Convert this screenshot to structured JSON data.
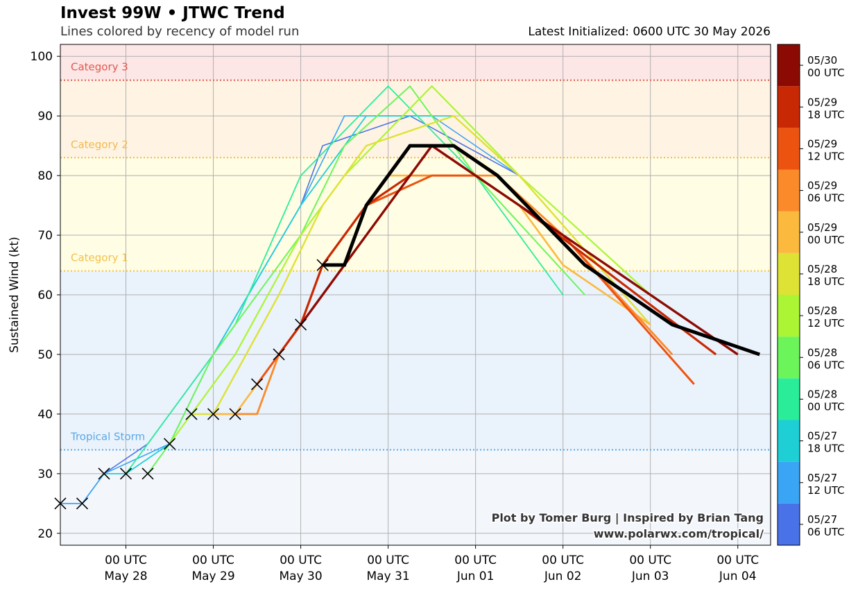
{
  "header": {
    "title": "Invest 99W • JTWC Trend",
    "subtitle": "Lines colored by recency of model run",
    "latest": "Latest Initialized: 0600 UTC 30 May 2026"
  },
  "credit": {
    "line1": "Plot by Tomer Burg | Inspired by Brian Tang",
    "line2": "www.polarwx.com/tropical/"
  },
  "chart_data": {
    "type": "line",
    "ylabel": "Sustained Wind (kt)",
    "ylim": [
      18,
      102
    ],
    "xlim": [
      "2026-05-27T06",
      "2026-06-04T09"
    ],
    "grid": true,
    "y_ticks": [
      20,
      30,
      40,
      50,
      60,
      70,
      80,
      90,
      100
    ],
    "x_ticks": [
      {
        "t": "2026-05-28T00",
        "line1": "00 UTC",
        "line2": "May 28"
      },
      {
        "t": "2026-05-29T00",
        "line1": "00 UTC",
        "line2": "May 29"
      },
      {
        "t": "2026-05-30T00",
        "line1": "00 UTC",
        "line2": "May 30"
      },
      {
        "t": "2026-05-31T00",
        "line1": "00 UTC",
        "line2": "May 31"
      },
      {
        "t": "2026-06-01T00",
        "line1": "00 UTC",
        "line2": "Jun 01"
      },
      {
        "t": "2026-06-02T00",
        "line1": "00 UTC",
        "line2": "Jun 02"
      },
      {
        "t": "2026-06-03T00",
        "line1": "00 UTC",
        "line2": "Jun 03"
      },
      {
        "t": "2026-06-04T00",
        "line1": "00 UTC",
        "line2": "Jun 04"
      }
    ],
    "categories": [
      {
        "name": "Tropical Storm",
        "threshold": 34,
        "color": "#5aa9e6",
        "band": "#eaf2fb"
      },
      {
        "name": "Category 1",
        "threshold": 64,
        "color": "#f2c14e",
        "band": "#fffde3"
      },
      {
        "name": "Category 2",
        "threshold": 83,
        "color": "#f2b84e",
        "band": "#fff4e3"
      },
      {
        "name": "Category 3",
        "threshold": 96,
        "color": "#e05a4e",
        "band": "#fde6e6"
      }
    ],
    "below_ts_band": "#f3f7fc",
    "best_track": [
      {
        "t": "2026-05-27T06",
        "v": 25
      },
      {
        "t": "2026-05-27T12",
        "v": 25
      },
      {
        "t": "2026-05-27T18",
        "v": 30
      },
      {
        "t": "2026-05-28T00",
        "v": 30
      },
      {
        "t": "2026-05-28T06",
        "v": 30
      },
      {
        "t": "2026-05-28T12",
        "v": 35
      },
      {
        "t": "2026-05-28T18",
        "v": 40
      },
      {
        "t": "2026-05-29T00",
        "v": 40
      },
      {
        "t": "2026-05-29T06",
        "v": 40
      },
      {
        "t": "2026-05-29T12",
        "v": 45
      },
      {
        "t": "2026-05-29T18",
        "v": 50
      },
      {
        "t": "2026-05-30T00",
        "v": 55
      },
      {
        "t": "2026-05-30T06",
        "v": 65
      }
    ],
    "colorbar": [
      {
        "label1": "05/27",
        "label2": "06 UTC",
        "color": "#4a72e8"
      },
      {
        "label1": "05/27",
        "label2": "12 UTC",
        "color": "#3aa4f5"
      },
      {
        "label1": "05/27",
        "label2": "18 UTC",
        "color": "#1ecfd6"
      },
      {
        "label1": "05/28",
        "label2": "00 UTC",
        "color": "#2aed9a"
      },
      {
        "label1": "05/28",
        "label2": "06 UTC",
        "color": "#6cf55a"
      },
      {
        "label1": "05/28",
        "label2": "12 UTC",
        "color": "#abf534"
      },
      {
        "label1": "05/28",
        "label2": "18 UTC",
        "color": "#dde235"
      },
      {
        "label1": "05/29",
        "label2": "00 UTC",
        "color": "#fbb93e"
      },
      {
        "label1": "05/29",
        "label2": "06 UTC",
        "color": "#fb8a2a"
      },
      {
        "label1": "05/29",
        "label2": "12 UTC",
        "color": "#ed5310"
      },
      {
        "label1": "05/29",
        "label2": "18 UTC",
        "color": "#c82803"
      },
      {
        "label1": "05/30",
        "label2": "00 UTC",
        "color": "#8c0a04"
      }
    ],
    "series": [
      {
        "init": "2026-05-27T06",
        "color": "#4a72e8",
        "width": 1.6,
        "points": [
          [
            "2026-05-27T06",
            25
          ],
          [
            "2026-05-27T12",
            25
          ],
          [
            "2026-05-27T18",
            30
          ],
          [
            "2026-05-28T06",
            35
          ],
          [
            "2026-05-29T00",
            50
          ],
          [
            "2026-05-30T00",
            75
          ],
          [
            "2026-05-30T06",
            85
          ],
          [
            "2026-05-31T06",
            90
          ],
          [
            "2026-06-01T12",
            80
          ]
        ]
      },
      {
        "init": "2026-05-27T12",
        "color": "#3aa4f5",
        "width": 1.6,
        "points": [
          [
            "2026-05-27T06",
            25
          ],
          [
            "2026-05-27T12",
            25
          ],
          [
            "2026-05-27T18",
            30
          ],
          [
            "2026-05-28T12",
            35
          ],
          [
            "2026-05-29T00",
            50
          ],
          [
            "2026-05-30T00",
            75
          ],
          [
            "2026-05-30T12",
            90
          ],
          [
            "2026-05-31T12",
            90
          ],
          [
            "2026-06-01T12",
            80
          ]
        ]
      },
      {
        "init": "2026-05-27T18",
        "color": "#1ecfd6",
        "width": 1.8,
        "points": [
          [
            "2026-05-27T18",
            30
          ],
          [
            "2026-05-28T00",
            30
          ],
          [
            "2026-05-28T12",
            35
          ],
          [
            "2026-05-29T00",
            50
          ],
          [
            "2026-05-30T00",
            75
          ],
          [
            "2026-05-30T18",
            90
          ],
          [
            "2026-05-31T18",
            90
          ],
          [
            "2026-06-01T12",
            80
          ]
        ]
      },
      {
        "init": "2026-05-28T00",
        "color": "#2aed9a",
        "width": 1.8,
        "points": [
          [
            "2026-05-28T00",
            30
          ],
          [
            "2026-05-28T12",
            40
          ],
          [
            "2026-05-29T00",
            50
          ],
          [
            "2026-05-29T06",
            55
          ],
          [
            "2026-05-30T00",
            80
          ],
          [
            "2026-05-31T00",
            95
          ],
          [
            "2026-06-01T00",
            80
          ],
          [
            "2026-06-02T00",
            60
          ]
        ]
      },
      {
        "init": "2026-05-28T06",
        "color": "#6cf55a",
        "width": 2.0,
        "points": [
          [
            "2026-05-28T06",
            30
          ],
          [
            "2026-05-28T12",
            35
          ],
          [
            "2026-05-29T00",
            50
          ],
          [
            "2026-05-30T00",
            70
          ],
          [
            "2026-05-30T12",
            85
          ],
          [
            "2026-05-31T06",
            95
          ],
          [
            "2026-06-01T00",
            80
          ],
          [
            "2026-06-02T06",
            60
          ]
        ]
      },
      {
        "init": "2026-05-28T12",
        "color": "#abf534",
        "width": 2.2,
        "points": [
          [
            "2026-05-28T12",
            35
          ],
          [
            "2026-05-28T18",
            40
          ],
          [
            "2026-05-29T06",
            50
          ],
          [
            "2026-05-30T00",
            70
          ],
          [
            "2026-05-30T12",
            80
          ],
          [
            "2026-05-31T12",
            95
          ],
          [
            "2026-06-01T12",
            80
          ],
          [
            "2026-06-03T00",
            60
          ]
        ]
      },
      {
        "init": "2026-05-28T18",
        "color": "#dde235",
        "width": 2.4,
        "points": [
          [
            "2026-05-28T18",
            40
          ],
          [
            "2026-05-29T00",
            40
          ],
          [
            "2026-05-29T18",
            60
          ],
          [
            "2026-05-30T06",
            75
          ],
          [
            "2026-05-30T18",
            85
          ],
          [
            "2026-05-31T18",
            90
          ],
          [
            "2026-06-01T12",
            80
          ],
          [
            "2026-06-03T00",
            55
          ]
        ]
      },
      {
        "init": "2026-05-29T00",
        "color": "#fbb93e",
        "width": 2.6,
        "points": [
          [
            "2026-05-29T00",
            40
          ],
          [
            "2026-05-29T06",
            40
          ],
          [
            "2026-05-29T18",
            50
          ],
          [
            "2026-05-30T00",
            55
          ],
          [
            "2026-05-30T06",
            65
          ],
          [
            "2026-05-30T18",
            75
          ],
          [
            "2026-05-31T00",
            80
          ],
          [
            "2026-06-01T00",
            80
          ],
          [
            "2026-06-01T12",
            75
          ],
          [
            "2026-06-02T00",
            65
          ],
          [
            "2026-06-03T00",
            55
          ]
        ]
      },
      {
        "init": "2026-05-29T06",
        "color": "#fb8a2a",
        "width": 2.8,
        "points": [
          [
            "2026-05-29T06",
            40
          ],
          [
            "2026-05-29T12",
            40
          ],
          [
            "2026-05-29T18",
            50
          ],
          [
            "2026-05-30T00",
            55
          ],
          [
            "2026-05-30T06",
            60
          ],
          [
            "2026-05-30T18",
            70
          ],
          [
            "2026-05-31T06",
            80
          ],
          [
            "2026-06-01T06",
            80
          ],
          [
            "2026-06-02T00",
            70
          ],
          [
            "2026-06-03T06",
            50
          ]
        ]
      },
      {
        "init": "2026-05-29T12",
        "color": "#ed5310",
        "width": 3.0,
        "points": [
          [
            "2026-05-29T12",
            45
          ],
          [
            "2026-05-29T18",
            50
          ],
          [
            "2026-05-30T00",
            55
          ],
          [
            "2026-05-30T06",
            65
          ],
          [
            "2026-05-30T18",
            75
          ],
          [
            "2026-05-31T12",
            80
          ],
          [
            "2026-06-01T00",
            80
          ],
          [
            "2026-06-02T00",
            70
          ],
          [
            "2026-06-03T12",
            45
          ]
        ]
      },
      {
        "init": "2026-05-29T18",
        "color": "#c82803",
        "width": 3.2,
        "points": [
          [
            "2026-05-29T18",
            50
          ],
          [
            "2026-05-30T00",
            55
          ],
          [
            "2026-05-30T06",
            65
          ],
          [
            "2026-05-30T18",
            75
          ],
          [
            "2026-05-31T06",
            80
          ],
          [
            "2026-05-31T12",
            85
          ],
          [
            "2026-06-01T12",
            75
          ],
          [
            "2026-06-03T18",
            50
          ]
        ]
      },
      {
        "init": "2026-05-30T00",
        "color": "#8c0a04",
        "width": 3.4,
        "points": [
          [
            "2026-05-30T00",
            55
          ],
          [
            "2026-05-30T12",
            65
          ],
          [
            "2026-05-31T00",
            75
          ],
          [
            "2026-05-31T12",
            85
          ],
          [
            "2026-06-01T12",
            75
          ],
          [
            "2026-06-04T00",
            50
          ]
        ]
      },
      {
        "init": "2026-05-30T06",
        "color": "#000000",
        "width": 5,
        "latest": true,
        "points": [
          [
            "2026-05-30T06",
            65
          ],
          [
            "2026-05-30T12",
            65
          ],
          [
            "2026-05-30T18",
            75
          ],
          [
            "2026-05-31T06",
            85
          ],
          [
            "2026-05-31T18",
            85
          ],
          [
            "2026-06-01T06",
            80
          ],
          [
            "2026-06-02T06",
            65
          ],
          [
            "2026-06-03T06",
            55
          ],
          [
            "2026-06-03T18",
            52.5
          ],
          [
            "2026-06-04T06",
            50
          ]
        ]
      }
    ]
  }
}
